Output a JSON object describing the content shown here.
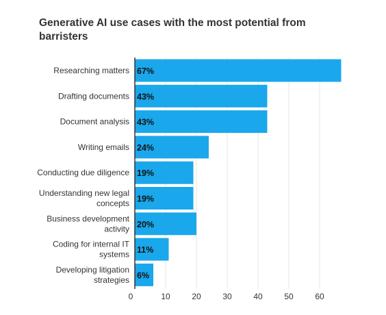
{
  "chart_data": {
    "type": "bar",
    "orientation": "horizontal",
    "title": "Generative AI use cases with the most potential from barristers",
    "categories": [
      "Researching matters",
      "Drafting documents",
      "Document analysis",
      "Writing emails",
      "Conducting due diligence",
      "Understanding new legal concepts",
      "Business development activity",
      "Coding for internal IT systems",
      "Developing litigation strategies"
    ],
    "category_lines": [
      [
        "Researching matters"
      ],
      [
        "Drafting documents"
      ],
      [
        "Document analysis"
      ],
      [
        "Writing emails"
      ],
      [
        "Conducting due diligence"
      ],
      [
        "Understanding new legal",
        "concepts"
      ],
      [
        "Business development",
        "activity"
      ],
      [
        "Coding for internal IT",
        "systems"
      ],
      [
        "Developing litigation",
        "strategies"
      ]
    ],
    "values": [
      67,
      43,
      43,
      24,
      19,
      19,
      20,
      11,
      6
    ],
    "data_labels": [
      "67%",
      "43%",
      "43%",
      "24%",
      "19%",
      "19%",
      "20%",
      "11%",
      "6%"
    ],
    "xlim": [
      0,
      67
    ],
    "xticks": [
      0,
      10,
      20,
      30,
      40,
      50,
      60
    ],
    "xlabel": "",
    "ylabel": "",
    "grid": true,
    "legend": "none",
    "colors": {
      "bar": "#1aa7ec",
      "grid": "#e6e6e6",
      "axis": "#333333",
      "label": "#333333"
    }
  }
}
